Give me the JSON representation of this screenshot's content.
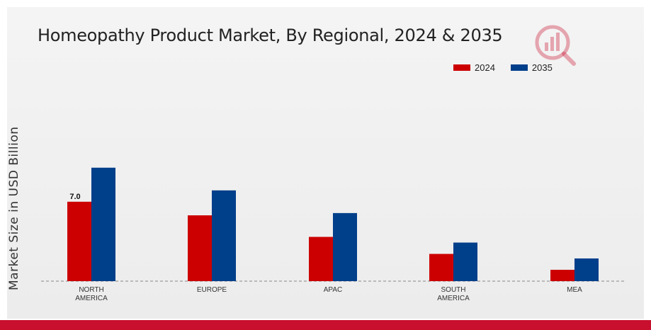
{
  "chart_data": {
    "type": "bar",
    "title": "Homeopathy Product Market, By Regional, 2024 & 2035",
    "ylabel": "Market Size in USD Billion",
    "xlabel": "",
    "categories": [
      [
        "NORTH",
        "AMERICA"
      ],
      [
        "EUROPE"
      ],
      [
        "APAC"
      ],
      [
        "SOUTH",
        "AMERICA"
      ],
      [
        "MEA"
      ]
    ],
    "series": [
      {
        "name": "2024",
        "color": "#cc0000",
        "values": [
          7.0,
          5.8,
          3.9,
          2.4,
          1.0
        ]
      },
      {
        "name": "2035",
        "color": "#003f8a",
        "values": [
          10.0,
          8.0,
          6.0,
          3.4,
          2.0
        ]
      }
    ],
    "data_labels": [
      {
        "series": 0,
        "category": 0,
        "text": "7.0"
      }
    ],
    "ylim": [
      0,
      14
    ],
    "grid": false,
    "legend_position": "top-right",
    "baseline_style": "dashed"
  },
  "colors": {
    "accent_bar": "#c8102e",
    "logo": "#c8102e"
  },
  "icons": {
    "logo": "brand-logo-icon"
  }
}
